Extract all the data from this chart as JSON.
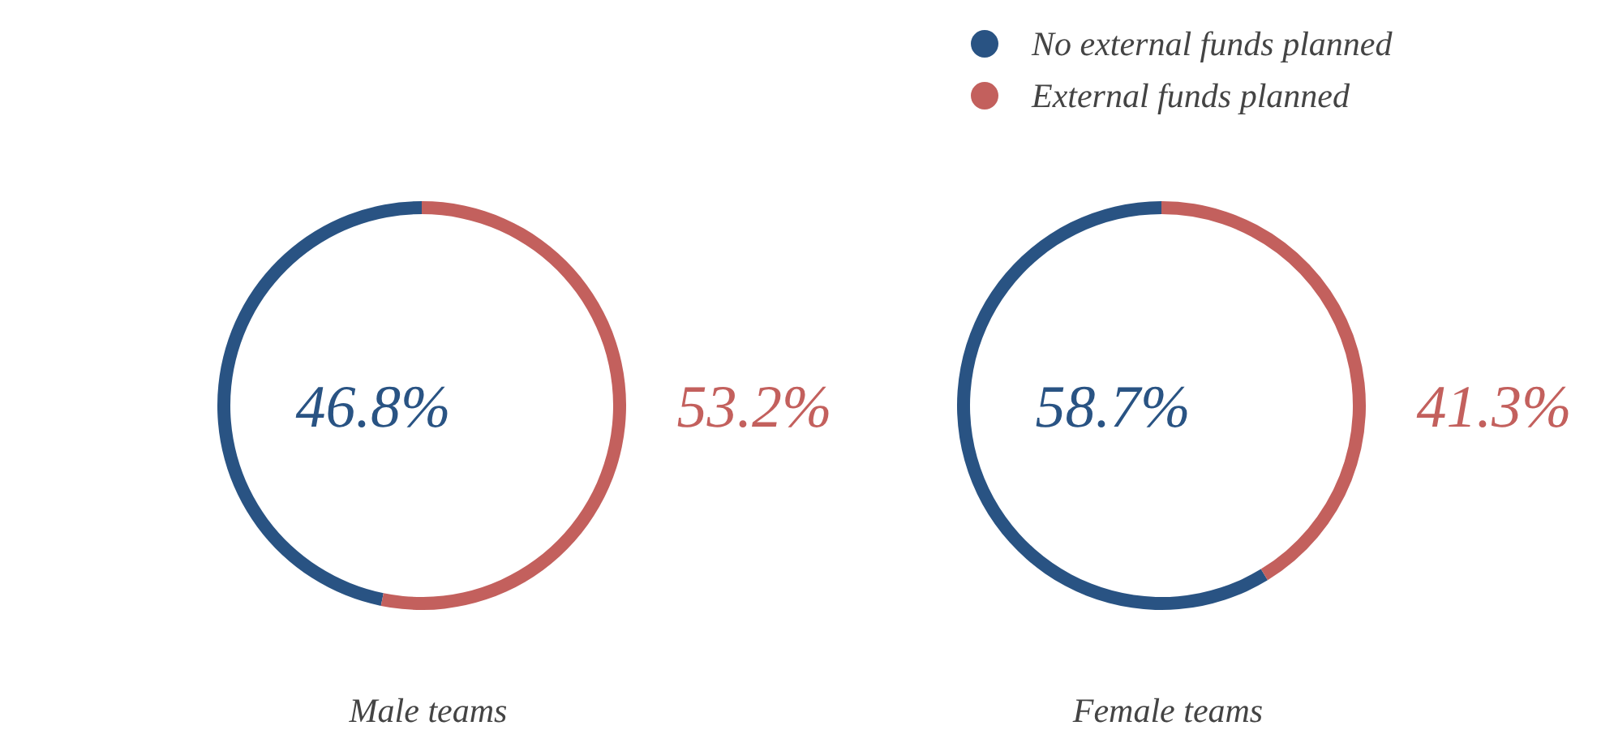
{
  "chart_data": [
    {
      "type": "donut",
      "title": "Male teams",
      "categories": [
        "No external funds planned",
        "External funds planned"
      ],
      "values": [
        46.8,
        53.2
      ],
      "colors": [
        "#295383",
        "#c3605d"
      ],
      "value_labels": [
        "46.8%",
        "53.2%"
      ],
      "legend": "top right"
    },
    {
      "type": "donut",
      "title": "Female teams",
      "categories": [
        null,
        null
      ],
      "values": [
        58.7,
        41.3
      ],
      "colors": [
        "#295383",
        "#c3605d"
      ],
      "value_labels": [
        "58.7%",
        "41.3%"
      ]
    }
  ]
}
